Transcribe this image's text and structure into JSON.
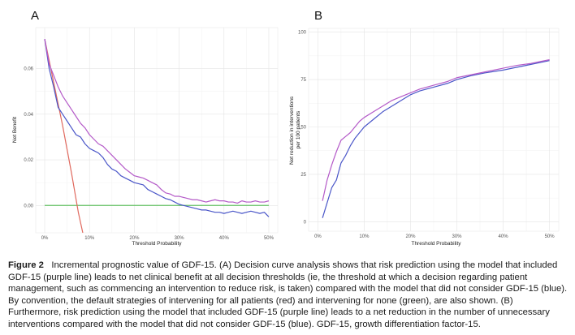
{
  "figure": {
    "caption_label": "Figure 2",
    "caption_text": "Incremental prognostic value of GDF-15. (A) Decision curve analysis shows that risk prediction using the model that included GDF-15 (purple line) leads to net clinical benefit at all decision thresholds (ie, the threshold at which a decision regarding patient management, such as commencing an intervention to reduce risk, is taken) compared with the model that did not consider GDF-15 (blue). By convention, the default strategies of intervening for all patients (red) and intervening for none (green), are also shown. (B) Furthermore, risk prediction using the model that included GDF-15 (purple line) leads to a net reduction in the number of unnecessary interventions compared with the model that did not consider GDF-15 (blue). GDF-15, growth differentiation factor-15."
  },
  "chart_data": [
    {
      "id": "A",
      "panel_label": "A",
      "type": "line",
      "xlabel": "Threshold Probability",
      "ylabel": "Net Benefit",
      "xlim": [
        -0.02,
        0.52
      ],
      "ylim": [
        -0.012,
        0.078
      ],
      "x_ticks": [
        0,
        0.1,
        0.2,
        0.3,
        0.4,
        0.5
      ],
      "x_tick_labels": [
        "0%",
        "10%",
        "20%",
        "30%",
        "40%",
        "50%"
      ],
      "y_ticks": [
        0,
        0.02,
        0.04,
        0.06
      ],
      "y_tick_labels": [
        "0.00",
        "0.02",
        "0.04",
        "0.06"
      ],
      "grid": true,
      "series": [
        {
          "name": "Intervene for none",
          "color": "#66c266",
          "points": [
            [
              0,
              0
            ],
            [
              0.5,
              0
            ]
          ]
        },
        {
          "name": "Intervene for all",
          "color": "#e0695e",
          "points": [
            [
              0,
              0.073
            ],
            [
              0.02,
              0.054
            ],
            [
              0.04,
              0.035
            ],
            [
              0.06,
              0.014
            ],
            [
              0.075,
              -0.003
            ],
            [
              0.085,
              -0.012
            ]
          ]
        },
        {
          "name": "Model without GDF-15",
          "color": "#4a56c8",
          "points": [
            [
              0,
              0.073
            ],
            [
              0.01,
              0.06
            ],
            [
              0.02,
              0.052
            ],
            [
              0.03,
              0.043
            ],
            [
              0.04,
              0.04
            ],
            [
              0.05,
              0.037
            ],
            [
              0.06,
              0.034
            ],
            [
              0.07,
              0.031
            ],
            [
              0.08,
              0.03
            ],
            [
              0.09,
              0.027
            ],
            [
              0.1,
              0.025
            ],
            [
              0.11,
              0.024
            ],
            [
              0.12,
              0.023
            ],
            [
              0.13,
              0.021
            ],
            [
              0.14,
              0.018
            ],
            [
              0.15,
              0.016
            ],
            [
              0.16,
              0.015
            ],
            [
              0.17,
              0.013
            ],
            [
              0.18,
              0.012
            ],
            [
              0.19,
              0.011
            ],
            [
              0.2,
              0.01
            ],
            [
              0.21,
              0.0095
            ],
            [
              0.22,
              0.009
            ],
            [
              0.23,
              0.007
            ],
            [
              0.24,
              0.006
            ],
            [
              0.25,
              0.005
            ],
            [
              0.26,
              0.004
            ],
            [
              0.27,
              0.003
            ],
            [
              0.28,
              0.0025
            ],
            [
              0.29,
              0.0015
            ],
            [
              0.3,
              0.0005
            ],
            [
              0.31,
              0
            ],
            [
              0.32,
              -0.0005
            ],
            [
              0.33,
              -0.001
            ],
            [
              0.34,
              -0.0015
            ],
            [
              0.35,
              -0.002
            ],
            [
              0.36,
              -0.002
            ],
            [
              0.37,
              -0.0025
            ],
            [
              0.38,
              -0.003
            ],
            [
              0.39,
              -0.003
            ],
            [
              0.4,
              -0.0035
            ],
            [
              0.41,
              -0.003
            ],
            [
              0.42,
              -0.0025
            ],
            [
              0.43,
              -0.003
            ],
            [
              0.44,
              -0.0035
            ],
            [
              0.45,
              -0.003
            ],
            [
              0.46,
              -0.0025
            ],
            [
              0.47,
              -0.003
            ],
            [
              0.48,
              -0.0035
            ],
            [
              0.49,
              -0.003
            ],
            [
              0.5,
              -0.005
            ]
          ]
        },
        {
          "name": "Model with GDF-15",
          "color": "#b45ac8",
          "points": [
            [
              0,
              0.073
            ],
            [
              0.01,
              0.062
            ],
            [
              0.02,
              0.057
            ],
            [
              0.03,
              0.052
            ],
            [
              0.04,
              0.048
            ],
            [
              0.05,
              0.045
            ],
            [
              0.06,
              0.042
            ],
            [
              0.07,
              0.039
            ],
            [
              0.08,
              0.036
            ],
            [
              0.09,
              0.034
            ],
            [
              0.1,
              0.031
            ],
            [
              0.11,
              0.029
            ],
            [
              0.12,
              0.027
            ],
            [
              0.13,
              0.026
            ],
            [
              0.14,
              0.024
            ],
            [
              0.15,
              0.022
            ],
            [
              0.16,
              0.02
            ],
            [
              0.17,
              0.018
            ],
            [
              0.18,
              0.016
            ],
            [
              0.19,
              0.0145
            ],
            [
              0.2,
              0.013
            ],
            [
              0.21,
              0.0125
            ],
            [
              0.22,
              0.012
            ],
            [
              0.23,
              0.011
            ],
            [
              0.24,
              0.01
            ],
            [
              0.25,
              0.009
            ],
            [
              0.26,
              0.007
            ],
            [
              0.27,
              0.0055
            ],
            [
              0.28,
              0.005
            ],
            [
              0.29,
              0.004
            ],
            [
              0.3,
              0.004
            ],
            [
              0.31,
              0.0035
            ],
            [
              0.32,
              0.003
            ],
            [
              0.33,
              0.0025
            ],
            [
              0.34,
              0.0025
            ],
            [
              0.35,
              0.002
            ],
            [
              0.36,
              0.0015
            ],
            [
              0.37,
              0.002
            ],
            [
              0.38,
              0.0025
            ],
            [
              0.39,
              0.002
            ],
            [
              0.4,
              0.002
            ],
            [
              0.41,
              0.0015
            ],
            [
              0.42,
              0.0015
            ],
            [
              0.43,
              0.001
            ],
            [
              0.44,
              0.002
            ],
            [
              0.45,
              0.0015
            ],
            [
              0.46,
              0.0015
            ],
            [
              0.47,
              0.002
            ],
            [
              0.48,
              0.0015
            ],
            [
              0.49,
              0.0015
            ],
            [
              0.5,
              0.002
            ]
          ]
        }
      ]
    },
    {
      "id": "B",
      "panel_label": "B",
      "type": "line",
      "xlabel": "Threshold Probability",
      "ylabel": "Net reduction in interventions per 100 patients",
      "ylabel_lines": [
        "Net reduction in interventions",
        "per 100 patients"
      ],
      "xlim": [
        -0.02,
        0.52
      ],
      "ylim": [
        -5,
        102
      ],
      "x_ticks": [
        0,
        0.1,
        0.2,
        0.3,
        0.4,
        0.5
      ],
      "x_tick_labels": [
        "0%",
        "10%",
        "20%",
        "30%",
        "40%",
        "50%"
      ],
      "y_ticks": [
        0,
        25,
        50,
        75,
        100
      ],
      "y_tick_labels": [
        "0",
        "25",
        "50",
        "75",
        "100"
      ],
      "grid": true,
      "series": [
        {
          "name": "Model without GDF-15",
          "color": "#4a56c8",
          "points": [
            [
              0.01,
              2
            ],
            [
              0.02,
              10
            ],
            [
              0.03,
              18
            ],
            [
              0.04,
              22
            ],
            [
              0.05,
              31
            ],
            [
              0.06,
              35
            ],
            [
              0.07,
              40
            ],
            [
              0.08,
              44
            ],
            [
              0.09,
              47
            ],
            [
              0.1,
              50
            ],
            [
              0.12,
              54
            ],
            [
              0.14,
              58
            ],
            [
              0.16,
              61
            ],
            [
              0.18,
              64
            ],
            [
              0.2,
              67
            ],
            [
              0.22,
              69
            ],
            [
              0.25,
              71
            ],
            [
              0.28,
              73
            ],
            [
              0.3,
              75
            ],
            [
              0.33,
              77
            ],
            [
              0.36,
              78.5
            ],
            [
              0.4,
              80
            ],
            [
              0.43,
              81.5
            ],
            [
              0.46,
              83
            ],
            [
              0.48,
              84
            ],
            [
              0.5,
              85
            ]
          ]
        },
        {
          "name": "Model with GDF-15",
          "color": "#b45ac8",
          "points": [
            [
              0.01,
              11
            ],
            [
              0.02,
              22
            ],
            [
              0.03,
              30
            ],
            [
              0.04,
              37
            ],
            [
              0.05,
              43
            ],
            [
              0.06,
              45
            ],
            [
              0.07,
              47
            ],
            [
              0.08,
              50
            ],
            [
              0.09,
              53
            ],
            [
              0.1,
              55
            ],
            [
              0.12,
              58
            ],
            [
              0.14,
              61
            ],
            [
              0.16,
              64
            ],
            [
              0.18,
              66
            ],
            [
              0.2,
              68
            ],
            [
              0.22,
              70
            ],
            [
              0.25,
              72
            ],
            [
              0.28,
              74
            ],
            [
              0.3,
              76
            ],
            [
              0.33,
              77.5
            ],
            [
              0.36,
              79
            ],
            [
              0.4,
              81
            ],
            [
              0.43,
              82.5
            ],
            [
              0.46,
              83.5
            ],
            [
              0.48,
              84.5
            ],
            [
              0.5,
              85.5
            ]
          ]
        }
      ]
    }
  ]
}
